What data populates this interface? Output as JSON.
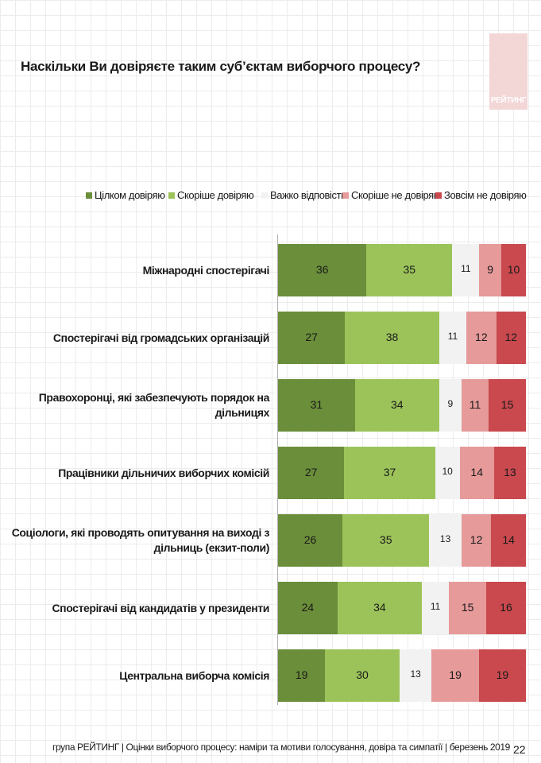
{
  "title": "Наскільки Ви довіряєте таким суб’єктам виборчого процесу?",
  "logo_text": "РЕЙТИНГ",
  "footer": "група РЕЙТИНГ | Оцінки виборчого процесу: наміри та мотиви голосування, довіра та симпатії | березень 2019",
  "page_number": "22",
  "colors": {
    "full_trust": "#6b8e3a",
    "rather_trust": "#9cc35a",
    "hard_to_say": "#f2f2f2",
    "rather_not": "#e69a9a",
    "not_at_all": "#c9494e"
  },
  "chart_data": {
    "type": "bar",
    "orientation": "horizontal",
    "stacked": true,
    "legend_position": "top",
    "categories": [
      "Міжнародні спостерігачі",
      "Спостерігачі від громадських організацій",
      "Правохоронці, які забезпечують порядок на дільницях",
      "Працівники дільничих виборчих комісій",
      "Соціологи, які проводять опитування на виході з дільниць (екзит-поли)",
      "Спостерігачі від кандидатів у президенти",
      "Центральна виборча комісія"
    ],
    "series": [
      {
        "name": "Цілком довіряю",
        "color": "#6b8e3a",
        "values": [
          36,
          27,
          31,
          27,
          26,
          24,
          19
        ]
      },
      {
        "name": "Скоріше довіряю",
        "color": "#9cc35a",
        "values": [
          35,
          38,
          34,
          37,
          35,
          34,
          30
        ]
      },
      {
        "name": "Важко відповісти",
        "color": "#f2f2f2",
        "values": [
          11,
          11,
          9,
          10,
          13,
          11,
          13
        ]
      },
      {
        "name": "Скоріше не довіряю",
        "color": "#e69a9a",
        "values": [
          9,
          12,
          11,
          14,
          12,
          15,
          19
        ]
      },
      {
        "name": "Зовсім не довіряю",
        "color": "#c9494e",
        "values": [
          10,
          12,
          15,
          13,
          14,
          16,
          19
        ]
      }
    ]
  }
}
